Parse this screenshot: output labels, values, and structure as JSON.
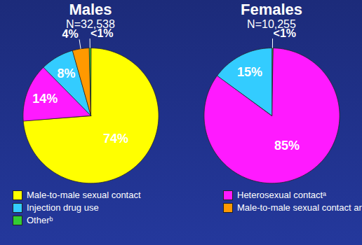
{
  "chart_data": [
    {
      "type": "pie",
      "title": "Males",
      "subtitle": "N=32,538",
      "categories": [
        "Male-to-male sexual contact",
        "Heterosexual contactᵃ",
        "Injection drug use",
        "Male-to-male sexual contact and IDU",
        "Otherᵇ"
      ],
      "values": [
        74,
        14,
        8,
        4,
        0.4
      ],
      "value_labels": [
        "74%",
        "14%",
        "8%",
        "4%",
        "<1%"
      ],
      "colors": [
        "#ffff00",
        "#ff1aff",
        "#33ccff",
        "#ff9900",
        "#33cc33"
      ],
      "data_labels": true,
      "legend": "bottom"
    },
    {
      "type": "pie",
      "title": "Females",
      "subtitle": "N=10,255",
      "categories": [
        "Otherᵇ",
        "Heterosexual contactᵃ",
        "Injection drug use"
      ],
      "values": [
        0.3,
        85,
        15
      ],
      "value_labels": [
        "<1%",
        "85%",
        "15%"
      ],
      "colors": [
        "#33cc33",
        "#ff1aff",
        "#33ccff"
      ],
      "data_labels": true,
      "legend": "bottom"
    }
  ]
}
